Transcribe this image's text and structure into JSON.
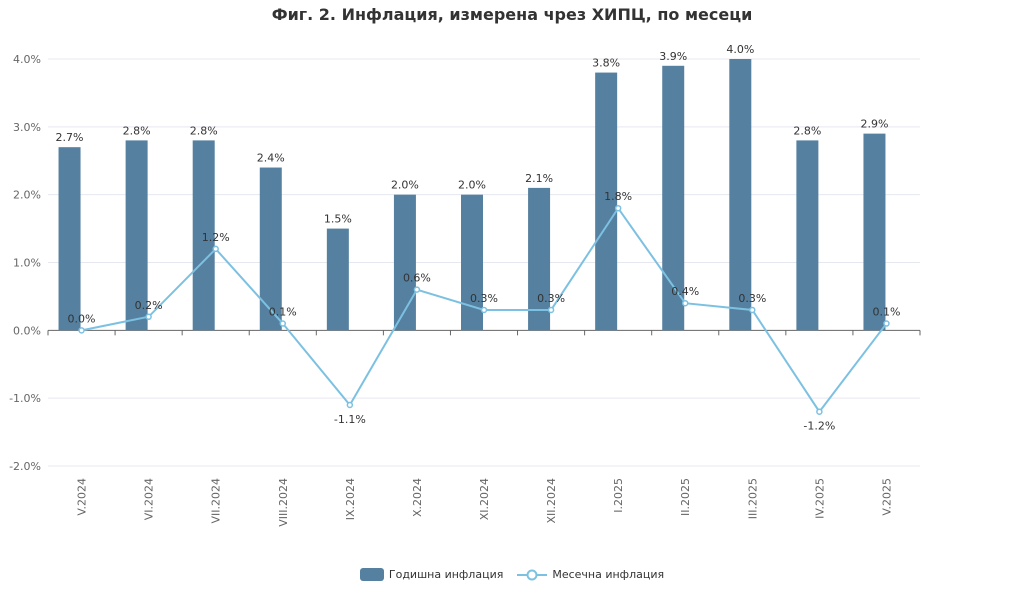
{
  "chart_data": {
    "type": "bar",
    "title": "Фиг. 2. Инфлация, измерена чрез ХИПЦ, по месеци",
    "categories": [
      "V.2024",
      "VI.2024",
      "VII.2024",
      "VIII.2024",
      "IX.2024",
      "X.2024",
      "XI.2024",
      "XII.2024",
      "I.2025",
      "II.2025",
      "III.2025",
      "IV.2025",
      "V.2025"
    ],
    "series": [
      {
        "name": "Годишна инфлация",
        "type": "bar",
        "color": "#55809f",
        "values": [
          2.7,
          2.8,
          2.8,
          2.4,
          1.5,
          2.0,
          2.0,
          2.1,
          3.8,
          3.9,
          4.0,
          2.8,
          2.9
        ]
      },
      {
        "name": "Месечна инфлация",
        "type": "line",
        "color": "#7cc1e2",
        "values": [
          0.0,
          0.2,
          1.2,
          0.1,
          -1.1,
          0.6,
          0.3,
          0.3,
          1.8,
          0.4,
          0.3,
          -1.2,
          0.1
        ]
      }
    ],
    "ylim": [
      -2,
      4
    ],
    "yticks": [
      "-2.0%",
      "-1.0%",
      "0.0%",
      "1.0%",
      "2.0%",
      "3.0%",
      "4.0%"
    ],
    "grid": true,
    "legend": "bottom-center"
  }
}
